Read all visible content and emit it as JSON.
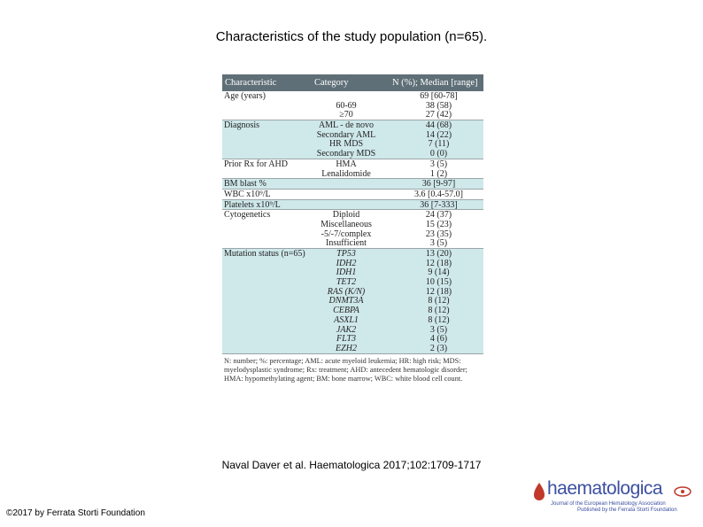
{
  "slide_title": "Characteristics of the study population (n=65).",
  "table": {
    "headers": [
      "Characteristic",
      "Category",
      "N (%); Median [range]"
    ],
    "groups": [
      {
        "shade": "white",
        "rows": [
          {
            "c1": "Age (years)",
            "c2": "",
            "c3": "69 [60-78]"
          },
          {
            "c1": "",
            "c2": "60-69",
            "c3": "38 (58)"
          },
          {
            "c1": "",
            "c2": "≥70",
            "c3": "27 (42)"
          }
        ]
      },
      {
        "shade": "teal",
        "rows": [
          {
            "c1": "Diagnosis",
            "c2": "AML - de novo",
            "c3": "44 (68)"
          },
          {
            "c1": "",
            "c2": "Secondary AML",
            "c3": "14 (22)"
          },
          {
            "c1": "",
            "c2": "HR MDS",
            "c3": "7 (11)"
          },
          {
            "c1": "",
            "c2": "Secondary MDS",
            "c3": "0 (0)"
          }
        ]
      },
      {
        "shade": "white",
        "rows": [
          {
            "c1": "Prior Rx for AHD",
            "c2": "HMA",
            "c3": "3 (5)"
          },
          {
            "c1": "",
            "c2": "Lenalidomide",
            "c3": "1 (2)"
          }
        ]
      },
      {
        "shade": "teal",
        "rows": [
          {
            "c1": "BM blast %",
            "c2": "",
            "c3": "36 [9-97]"
          }
        ]
      },
      {
        "shade": "white",
        "rows": [
          {
            "c1": "WBC x10⁹/L",
            "c2": "",
            "c3": "3.6 [0.4-57.0]"
          }
        ]
      },
      {
        "shade": "teal",
        "rows": [
          {
            "c1": "Platelets x10⁹/L",
            "c2": "",
            "c3": "36 [7-333]"
          }
        ]
      },
      {
        "shade": "white",
        "rows": [
          {
            "c1": "Cytogenetics",
            "c2": "Diploid",
            "c3": "24 (37)"
          },
          {
            "c1": "",
            "c2": "Miscellaneous",
            "c3": "15 (23)"
          },
          {
            "c1": "",
            "c2": "-5/-7/complex",
            "c3": "23 (35)"
          },
          {
            "c1": "",
            "c2": "Insufficient",
            "c3": "3 (5)"
          }
        ]
      },
      {
        "shade": "teal",
        "rows": [
          {
            "c1": "Mutation status (n=65)",
            "c2": "TP53",
            "c3": "13 (20)",
            "italic": true
          },
          {
            "c1": "",
            "c2": "IDH2",
            "c3": "12 (18)",
            "italic": true
          },
          {
            "c1": "",
            "c2": "IDH1",
            "c3": "9 (14)",
            "italic": true
          },
          {
            "c1": "",
            "c2": "TET2",
            "c3": "10 (15)",
            "italic": true
          },
          {
            "c1": "",
            "c2": "RAS (K/N)",
            "c3": "12 (18)",
            "italic": true
          },
          {
            "c1": "",
            "c2": "DNMT3A",
            "c3": "8 (12)",
            "italic": true
          },
          {
            "c1": "",
            "c2": "CEBPA",
            "c3": "8 (12)",
            "italic": true
          },
          {
            "c1": "",
            "c2": "ASXL1",
            "c3": "8 (12)",
            "italic": true
          },
          {
            "c1": "",
            "c2": "JAK2",
            "c3": "3 (5)",
            "italic": true
          },
          {
            "c1": "",
            "c2": "FLT3",
            "c3": "4 (6)",
            "italic": true
          },
          {
            "c1": "",
            "c2": "EZH2",
            "c3": "2 (3)",
            "italic": true
          }
        ]
      }
    ],
    "footnote": "N: number; %: percentage; AML: acute myeloid leukemia; HR: high risk; MDS: myelodysplastic syndrome; Rx: treatment; AHD: antecedent hematologic disorder; HMA: hypomethylating agent; BM: bone marrow; WBC: white blood cell count."
  },
  "citation": "Naval Daver et al. Haematologica 2017;102:1709-1717",
  "copyright": "©2017 by Ferrata Storti Foundation",
  "logo": {
    "word": "haematologica",
    "subtitle1": "Journal of the European Hematology Association",
    "subtitle2": "Published by the Ferrata Storti Foundation",
    "color": "#3c4fa0"
  }
}
